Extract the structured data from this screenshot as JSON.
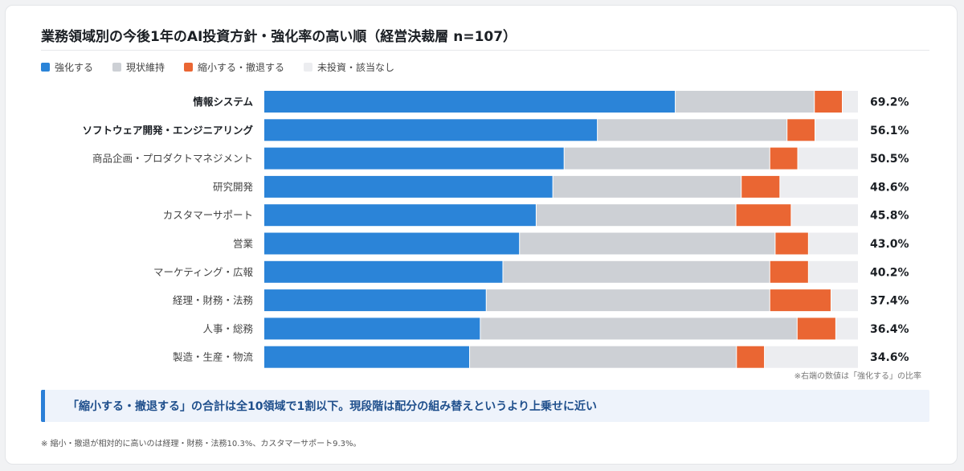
{
  "title": "業務領域別の今後1年のAI投資方針・強化率の高い順（経営決裁層 n=107）",
  "legend": [
    {
      "label": "強化する",
      "color": "#2b84d8"
    },
    {
      "label": "現状維持",
      "color": "#cdd0d5"
    },
    {
      "label": "縮小する・撤退する",
      "color": "#ea6633"
    },
    {
      "label": "未投資・該当なし",
      "color": "#ecedf0"
    }
  ],
  "chart_data": {
    "type": "bar",
    "orientation": "horizontal",
    "stacked": true,
    "percent_stacked": true,
    "categories": [
      "情報システム",
      "ソフトウェア開発・エンジニアリング",
      "商品企画・プロダクトマネジメント",
      "研究開発",
      "カスタマーサポート",
      "営業",
      "マーケティング・広報",
      "経理・財務・法務",
      "人事・総務",
      "製造・生産・物流"
    ],
    "bold_categories": [
      "情報システム",
      "ソフトウェア開発・エンジニアリング"
    ],
    "series": [
      {
        "name": "強化する",
        "color": "#2b84d8",
        "values": [
          69.2,
          56.1,
          50.5,
          48.6,
          45.8,
          43.0,
          40.2,
          37.4,
          36.4,
          34.6
        ]
      },
      {
        "name": "現状維持",
        "color": "#cdd0d5",
        "values": [
          23.4,
          31.9,
          34.6,
          31.7,
          33.6,
          43.0,
          44.9,
          47.7,
          53.3,
          44.9
        ]
      },
      {
        "name": "縮小する・撤退する",
        "color": "#ea6633",
        "values": [
          4.7,
          4.7,
          4.7,
          6.5,
          9.3,
          5.6,
          6.5,
          10.3,
          6.5,
          4.7
        ]
      },
      {
        "name": "未投資・該当なし",
        "color": "#ecedf0",
        "values": [
          2.7,
          7.3,
          10.2,
          13.2,
          11.3,
          8.4,
          8.4,
          4.6,
          3.8,
          15.8
        ]
      }
    ],
    "value_labels": [
      "69.2%",
      "56.1%",
      "50.5%",
      "48.6%",
      "45.8%",
      "43.0%",
      "40.2%",
      "37.4%",
      "36.4%",
      "34.6%"
    ],
    "xlim": [
      0,
      100
    ],
    "grid": false
  },
  "right_note": "※右端の数値は「強化する」の比率",
  "callout": "「縮小する・撤退する」の合計は全10領域で1割以下。現段階は配分の組み替えというより上乗せに近い",
  "footnote": "※ 縮小・撤退が相対的に高いのは経理・財務・法務10.3%、カスタマーサポート9.3%。"
}
